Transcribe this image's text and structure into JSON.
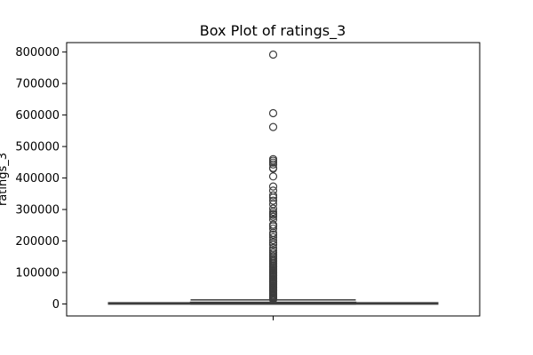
{
  "chart_data": {
    "type": "box",
    "title": "Box Plot of ratings_3",
    "xlabel": "",
    "ylabel": "ratings_3",
    "ylim": [
      -38000,
      830000
    ],
    "yticks": [
      0,
      100000,
      200000,
      300000,
      400000,
      500000,
      600000,
      700000,
      800000
    ],
    "ytick_labels": [
      "0",
      "100000",
      "200000",
      "300000",
      "400000",
      "500000",
      "600000",
      "700000",
      "800000"
    ],
    "grid": false,
    "box": {
      "min": 0,
      "q1": 300,
      "median": 1800,
      "q3": 5500,
      "whisker_low": 0,
      "whisker_high": 13000
    },
    "outliers": [
      792000,
      606000,
      562000,
      460000,
      455000,
      449000,
      443000,
      432000,
      430000,
      405000,
      373000,
      360000,
      345000,
      338000,
      328000,
      317000,
      303000,
      293000,
      287000,
      283000,
      277000,
      268000,
      252000,
      247000,
      239000,
      226000,
      220000,
      212000,
      203000,
      195000,
      188000,
      178000,
      170000,
      163000,
      157000,
      152000,
      148000,
      143000,
      139000,
      135000,
      130000,
      126000,
      122000,
      118000,
      114000,
      110000,
      106000,
      102000,
      98000,
      94000,
      90000,
      86000,
      82000,
      78000,
      74000,
      70000,
      66000,
      62000,
      58000,
      54000,
      50000,
      46000,
      42000,
      38000,
      34000,
      30000,
      27000,
      24000,
      21000,
      18000,
      16000,
      14500
    ],
    "colors": {
      "box_stroke": "#3d3d3d",
      "outlier_stroke": "#3d3d3d"
    }
  }
}
